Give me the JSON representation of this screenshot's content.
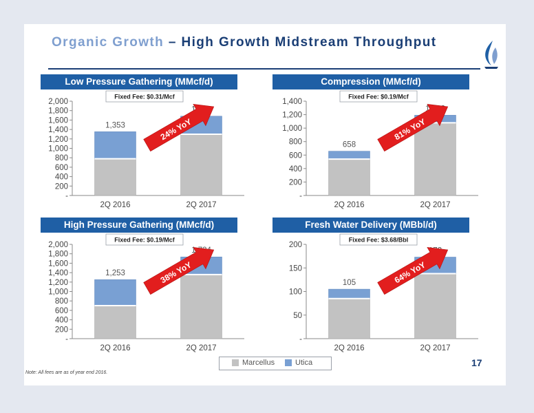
{
  "title": {
    "part1": "Organic Growth",
    "part2": " – High Growth Midstream Throughput"
  },
  "colors": {
    "marcellus": "#c2c2c2",
    "utica": "#79a0d3",
    "header": "#1f5fa5",
    "arrow": "#e21e1e"
  },
  "legend": {
    "marcellus": "Marcellus",
    "utica": "Utica"
  },
  "page_number": "17",
  "note": "Note: All fees are as of year end 2016.",
  "chart_data": [
    {
      "type": "bar",
      "title": "Low Pressure Gathering (MMcf/d)",
      "fee": "Fixed Fee: $0.31/Mcf",
      "growth": "24% YoY",
      "categories": [
        "2Q 2016",
        "2Q 2017"
      ],
      "totals": [
        1353,
        1683
      ],
      "total_labels": [
        "1,353",
        "1,683"
      ],
      "series": [
        {
          "name": "Marcellus",
          "values": [
            780,
            1300
          ]
        },
        {
          "name": "Utica",
          "values": [
            573,
            383
          ]
        }
      ],
      "ylim": [
        0,
        2000
      ],
      "yticks": [
        0,
        200,
        400,
        600,
        800,
        1000,
        1200,
        1400,
        1600,
        1800,
        2000
      ],
      "ytick_labels": [
        "-",
        "200",
        "400",
        "600",
        "800",
        "1,000",
        "1,200",
        "1,400",
        "1,600",
        "1,800",
        "2,000"
      ]
    },
    {
      "type": "bar",
      "title": "Compression (MMcf/d)",
      "fee": "Fixed Fee: $0.19/Mcf",
      "growth": "81% YoY",
      "categories": [
        "2Q 2016",
        "2Q 2017"
      ],
      "totals": [
        658,
        1192
      ],
      "total_labels": [
        "658",
        "1,192"
      ],
      "series": [
        {
          "name": "Marcellus",
          "values": [
            540,
            1080
          ]
        },
        {
          "name": "Utica",
          "values": [
            118,
            112
          ]
        }
      ],
      "ylim": [
        0,
        1400
      ],
      "yticks": [
        0,
        200,
        400,
        600,
        800,
        1000,
        1200,
        1400
      ],
      "ytick_labels": [
        "-",
        "200",
        "400",
        "600",
        "800",
        "1,000",
        "1,200",
        "1,400"
      ]
    },
    {
      "type": "bar",
      "title": "High Pressure Gathering (MMcf/d)",
      "fee": "Fixed Fee: $0.19/Mcf",
      "growth": "38% YoY",
      "categories": [
        "2Q 2016",
        "2Q 2017"
      ],
      "totals": [
        1253,
        1734
      ],
      "total_labels": [
        "1,253",
        "1,734"
      ],
      "series": [
        {
          "name": "Marcellus",
          "values": [
            700,
            1360
          ]
        },
        {
          "name": "Utica",
          "values": [
            553,
            374
          ]
        }
      ],
      "ylim": [
        0,
        2000
      ],
      "yticks": [
        0,
        200,
        400,
        600,
        800,
        1000,
        1200,
        1400,
        1600,
        1800,
        2000
      ],
      "ytick_labels": [
        "-",
        "200",
        "400",
        "600",
        "800",
        "1,000",
        "1,200",
        "1,400",
        "1,600",
        "1,800",
        "2,000"
      ]
    },
    {
      "type": "bar",
      "title": "Fresh Water Delivery (MBbl/d)",
      "fee": "Fixed Fee: $3.68/Bbl",
      "growth": "64% YoY",
      "categories": [
        "2Q 2016",
        "2Q 2017"
      ],
      "totals": [
        105,
        173
      ],
      "total_labels": [
        "105",
        "173"
      ],
      "series": [
        {
          "name": "Marcellus",
          "values": [
            85,
            138
          ]
        },
        {
          "name": "Utica",
          "values": [
            20,
            35
          ]
        }
      ],
      "ylim": [
        0,
        200
      ],
      "yticks": [
        0,
        50,
        100,
        150,
        200
      ],
      "ytick_labels": [
        "-",
        "50",
        "100",
        "150",
        "200"
      ]
    }
  ]
}
